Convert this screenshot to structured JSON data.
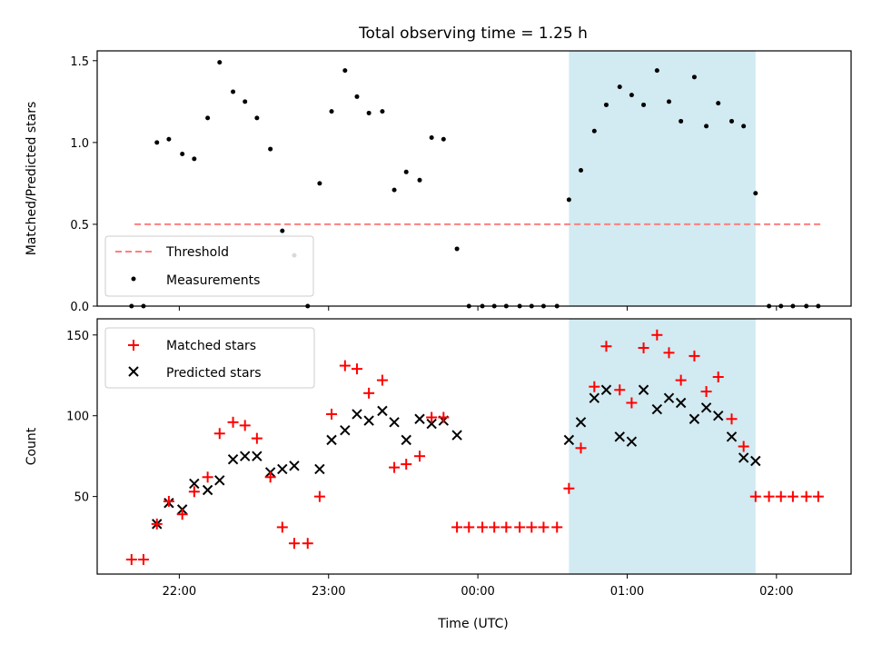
{
  "title": "Total observing time = 1.25 h",
  "colors": {
    "highlight": "#add8e6",
    "threshold": "#ff7f7f",
    "measurement": "#000000",
    "matched": "#ff0000",
    "predicted": "#000000"
  },
  "x_axis": {
    "label": "Time (UTC)",
    "ticks": [
      {
        "value": 22.0,
        "label": "22:00"
      },
      {
        "value": 23.0,
        "label": "23:00"
      },
      {
        "value": 24.0,
        "label": "00:00"
      },
      {
        "value": 25.0,
        "label": "01:00"
      },
      {
        "value": 26.0,
        "label": "02:00"
      }
    ],
    "xlim": [
      21.45,
      26.5
    ],
    "highlight_range": [
      24.61,
      25.86
    ]
  },
  "chart_data": [
    {
      "type": "scatter",
      "ylabel": "Matched/Predicted stars",
      "ylim": [
        0,
        1.56
      ],
      "yticks": [
        0.0,
        0.5,
        1.0,
        1.5
      ],
      "ytick_labels": [
        "0.0",
        "0.5",
        "1.0",
        "1.5"
      ],
      "legend": {
        "placement": "lower-left",
        "entries": [
          "Threshold",
          "Measurements"
        ]
      },
      "threshold": {
        "name": "Threshold",
        "value": 0.5,
        "x_range": [
          21.7,
          26.3
        ]
      },
      "series": [
        {
          "name": "Measurements",
          "x": [
            21.68,
            21.76,
            21.85,
            21.93,
            22.02,
            22.1,
            22.19,
            22.27,
            22.36,
            22.44,
            22.52,
            22.61,
            22.69,
            22.77,
            22.86,
            22.94,
            23.02,
            23.11,
            23.19,
            23.27,
            23.36,
            23.44,
            23.52,
            23.61,
            23.69,
            23.77,
            23.86,
            23.94,
            24.03,
            24.11,
            24.19,
            24.28,
            24.36,
            24.44,
            24.53,
            24.61,
            24.69,
            24.78,
            24.86,
            24.95,
            25.03,
            25.11,
            25.2,
            25.28,
            25.36,
            25.45,
            25.53,
            25.61,
            25.7,
            25.78,
            25.86,
            25.95,
            26.03,
            26.11,
            26.2,
            26.28
          ],
          "y": [
            0.0,
            0.0,
            1.0,
            1.02,
            0.93,
            0.9,
            1.15,
            1.49,
            1.31,
            1.25,
            1.15,
            0.96,
            0.46,
            0.31,
            0.0,
            0.75,
            1.19,
            1.44,
            1.28,
            1.18,
            1.19,
            0.71,
            0.82,
            0.77,
            1.03,
            1.02,
            0.35,
            0.0,
            0.0,
            0.0,
            0.0,
            0.0,
            0.0,
            0.0,
            0.0,
            0.65,
            0.83,
            1.07,
            1.23,
            1.34,
            1.29,
            1.23,
            1.44,
            1.25,
            1.13,
            1.4,
            1.1,
            1.24,
            1.13,
            1.1,
            0.69,
            0.0,
            0.0,
            0.0,
            0.0,
            0.0
          ]
        }
      ]
    },
    {
      "type": "scatter",
      "ylabel": "Count",
      "ylim": [
        2,
        160
      ],
      "yticks": [
        50,
        100,
        150
      ],
      "ytick_labels": [
        "50",
        "100",
        "150"
      ],
      "legend": {
        "placement": "upper-left",
        "entries": [
          "Matched stars",
          "Predicted stars"
        ]
      },
      "series": [
        {
          "name": "Matched stars",
          "marker": "+",
          "x": [
            21.68,
            21.76,
            21.85,
            21.93,
            22.02,
            22.1,
            22.19,
            22.27,
            22.36,
            22.44,
            22.52,
            22.61,
            22.69,
            22.77,
            22.86,
            22.94,
            23.02,
            23.11,
            23.19,
            23.27,
            23.36,
            23.44,
            23.52,
            23.61,
            23.69,
            23.77,
            23.86,
            23.94,
            24.03,
            24.11,
            24.19,
            24.28,
            24.36,
            24.44,
            24.53,
            24.61,
            24.69,
            24.78,
            24.86,
            24.95,
            25.03,
            25.11,
            25.2,
            25.28,
            25.36,
            25.45,
            25.53,
            25.61,
            25.7,
            25.78,
            25.86,
            25.95,
            26.03,
            26.11,
            26.2,
            26.28
          ],
          "y": [
            11,
            11,
            33,
            47,
            39,
            53,
            62,
            89,
            96,
            94,
            86,
            62,
            31,
            21,
            21,
            50,
            101,
            131,
            129,
            114,
            122,
            68,
            70,
            75,
            99,
            99,
            31,
            31,
            31,
            31,
            31,
            31,
            31,
            31,
            31,
            55,
            80,
            118,
            143,
            116,
            108,
            142,
            150,
            139,
            122,
            137,
            115,
            124,
            98,
            81,
            50,
            50,
            50,
            50,
            50,
            50
          ]
        },
        {
          "name": "Predicted stars",
          "marker": "x",
          "x": [
            21.85,
            21.93,
            22.02,
            22.1,
            22.19,
            22.27,
            22.36,
            22.44,
            22.52,
            22.61,
            22.69,
            22.77,
            22.94,
            23.02,
            23.11,
            23.19,
            23.27,
            23.36,
            23.44,
            23.52,
            23.61,
            23.69,
            23.77,
            23.86,
            24.61,
            24.69,
            24.78,
            24.86,
            24.95,
            25.03,
            25.11,
            25.2,
            25.28,
            25.36,
            25.45,
            25.53,
            25.61,
            25.7,
            25.78,
            25.86
          ],
          "y": [
            33,
            46,
            42,
            58,
            54,
            60,
            73,
            75,
            75,
            65,
            67,
            69,
            67,
            85,
            91,
            101,
            97,
            103,
            96,
            85,
            98,
            95,
            97,
            88,
            85,
            96,
            111,
            116,
            87,
            84,
            116,
            104,
            111,
            108,
            98,
            105,
            100,
            87,
            74,
            72
          ]
        }
      ]
    }
  ]
}
